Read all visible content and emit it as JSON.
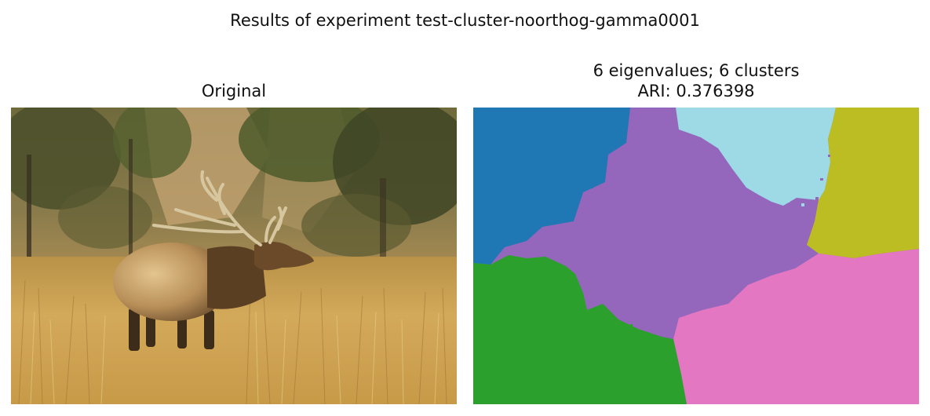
{
  "figure": {
    "suptitle": "Results of experiment test-cluster-noorthog-gamma0001"
  },
  "left_panel": {
    "title": "Original",
    "subject_icon": "elk-photo-icon"
  },
  "right_panel": {
    "title_line1": "6 eigenvalues; 6 clusters",
    "title_line2": "ARI: 0.376398",
    "cluster_count": 6,
    "cluster_colors": {
      "blue": "#1f77b4",
      "purple": "#9467bd",
      "light_blue": "#9edae5",
      "olive": "#bcbd22",
      "green": "#2ca02c",
      "pink": "#e377c2"
    }
  }
}
